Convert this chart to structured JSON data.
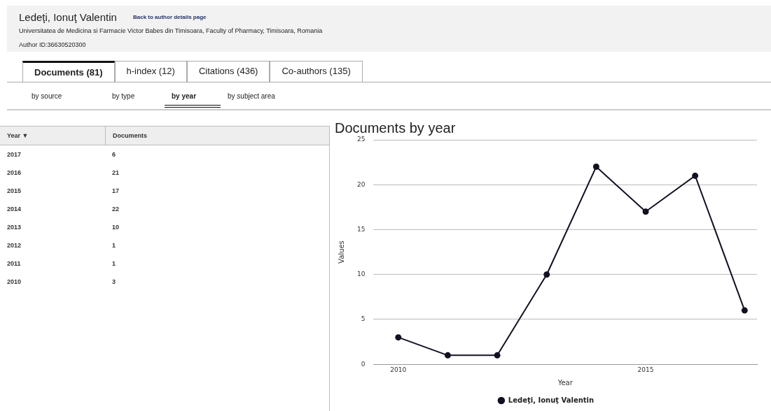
{
  "chart_data": {
    "type": "line",
    "title": "Documents by year",
    "xlabel": "Year",
    "ylabel": "Values",
    "annotations": [
      "Ledeţi, Ionuţ Valentin",
      "Back to author details page",
      "Universitatea de Medicina si Farmacie Victor Babes din Timisoara, Faculty of Pharmacy, Timisoara, Romania",
      "Author ID:36630520300",
      "Documents (81)",
      "h-index (12)",
      "Citations (436)",
      "Co-authors (135)",
      "by source",
      "by type",
      "by year",
      "by subject area",
      "Year ▼",
      "Documents",
      "2017",
      "6",
      "2016",
      "21",
      "2015",
      "17",
      "2014",
      "22",
      "2013",
      "10",
      "2012",
      "1",
      "2011",
      "1",
      "2010",
      "3"
    ],
    "x": [
      2010,
      2011,
      2012,
      2013,
      2014,
      2015,
      2016,
      2017
    ],
    "series": [
      {
        "name": "Ledeţi, Ionuţ Valentin",
        "color": "#111122",
        "values": [
          3,
          1,
          1,
          10,
          22,
          17,
          21,
          6
        ]
      }
    ],
    "xlim": [
      2009.5,
      2017.25
    ],
    "xticks": [
      2010,
      2015
    ],
    "ylim": [
      0,
      25
    ],
    "yticks": [
      0,
      5,
      10,
      15,
      20,
      25
    ],
    "grid": "y",
    "legend": "bottom",
    "marker": "circle",
    "line_style": "solid"
  }
}
